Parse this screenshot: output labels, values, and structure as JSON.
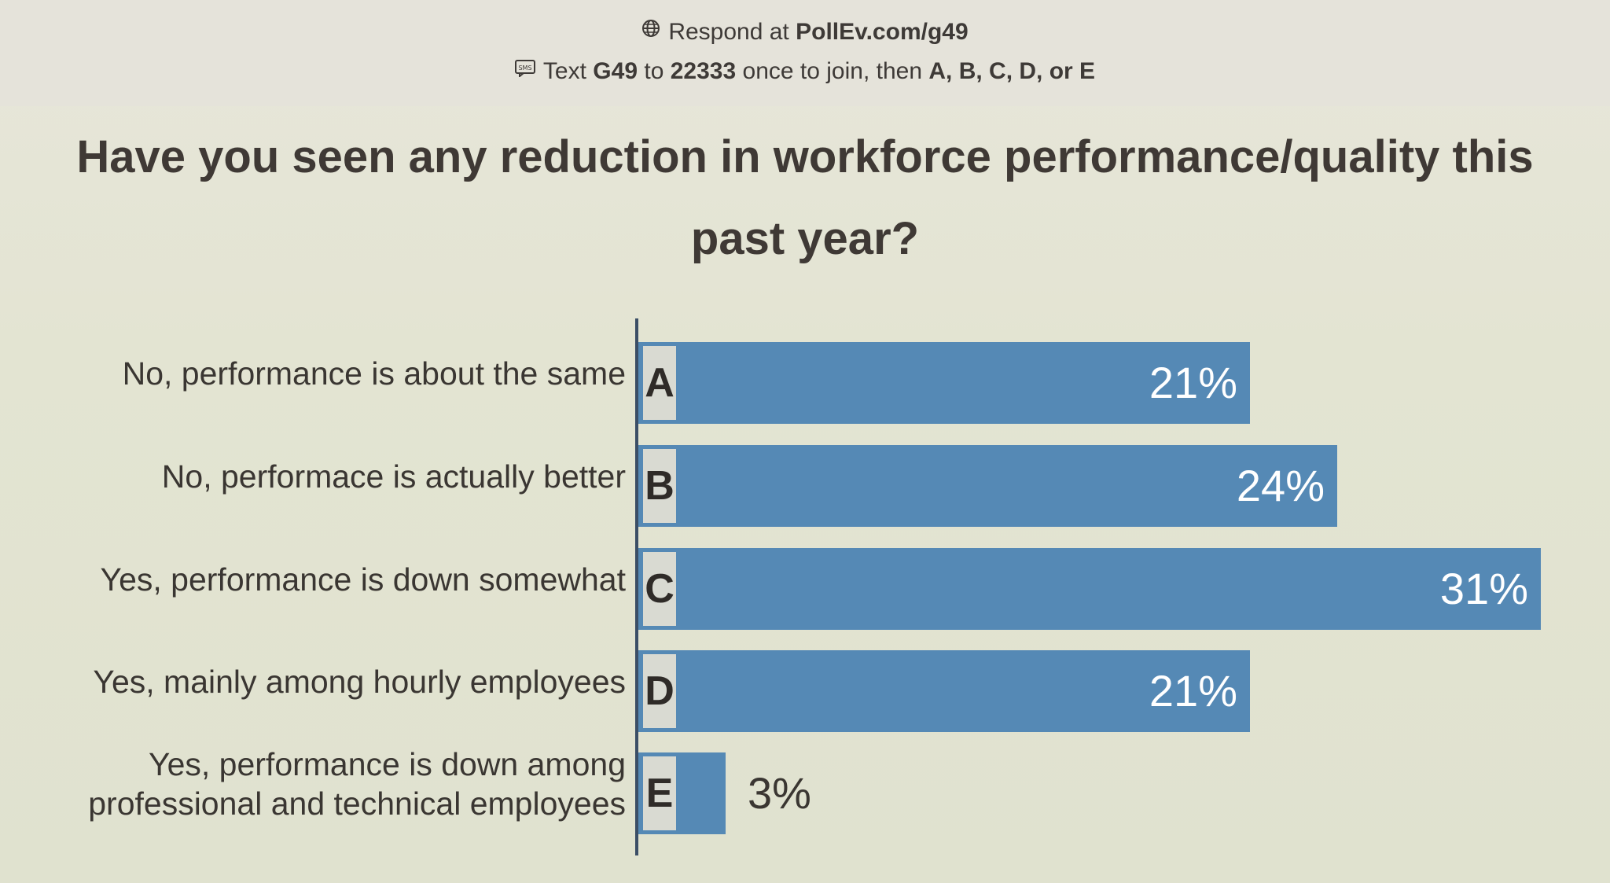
{
  "header": {
    "respond_prefix": "Respond at",
    "respond_url": "PollEv.com/g49",
    "text_prefix": "Text",
    "text_code": "G49",
    "text_to": "to",
    "text_number": "22333",
    "text_middle": "once to join, then",
    "text_options": "A, B, C, D, or E",
    "globe_icon": "globe-icon",
    "sms_icon": "sms-icon"
  },
  "question": "Have you seen any reduction in workforce performance/quality this past year?",
  "colors": {
    "bar": "#5589b5",
    "letter_box": "#d9dad2",
    "text": "#3e3a37"
  },
  "chart_data": {
    "type": "bar",
    "orientation": "horizontal",
    "title": "Have you seen any reduction in workforce performance/quality this past year?",
    "categories": [
      "No, performance is about the same",
      "No, performace is actually better",
      "Yes, performance is down somewhat",
      "Yes, mainly among hourly employees",
      "Yes, performance is down among professional and technical employees"
    ],
    "category_lines": [
      [
        "No, performance is about the same"
      ],
      [
        "No, performace is actually better"
      ],
      [
        "Yes, performance is down somewhat"
      ],
      [
        "Yes, mainly among hourly employees"
      ],
      [
        "Yes, performance is down among",
        "professional and technical employees"
      ]
    ],
    "letters": [
      "A",
      "B",
      "C",
      "D",
      "E"
    ],
    "values": [
      21,
      24,
      31,
      21,
      3
    ],
    "value_labels": [
      "21%",
      "24%",
      "31%",
      "21%",
      "3%"
    ],
    "unit": "%",
    "xlim": [
      0,
      31
    ],
    "grid": false,
    "legend": "none"
  }
}
